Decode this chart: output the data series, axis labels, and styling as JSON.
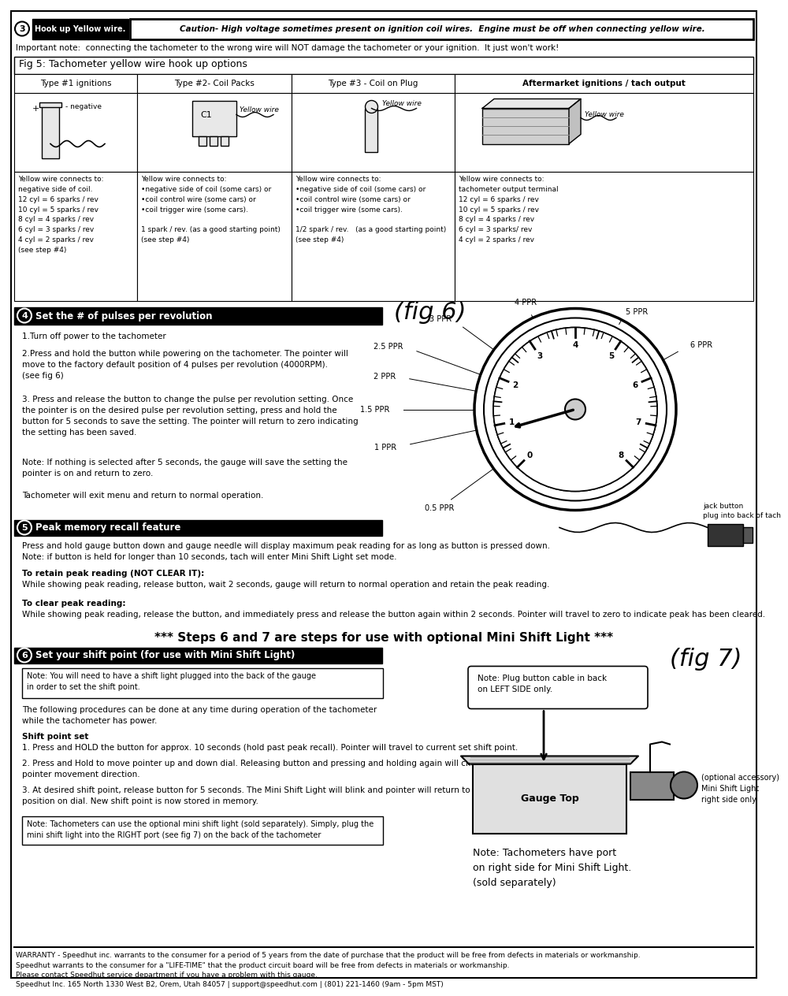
{
  "page_bg": "#ffffff",
  "fig_width": 9.54,
  "fig_height": 12.35,
  "step3_caution": "Caution- High voltage sometimes present on ignition coil wires.  Engine must be off when connecting yellow wire.",
  "important_note": "Important note:  connecting the tachometer to the wrong wire will NOT damage the tachometer or your ignition.  It just won't work!",
  "fig5_title": "Fig 5: Tachometer yellow wire hook up options",
  "col_headers": [
    "Type #1 ignitions",
    "Type #2- Coil Packs",
    "Type #3 - Coil on Plug",
    "Aftermarket ignitions / tach output"
  ],
  "col1_text": "Yellow wire connects to:\nnegative side of coil.\n12 cyl = 6 sparks / rev\n10 cyl = 5 sparks / rev\n8 cyl = 4 sparks / rev\n6 cyl = 3 sparks / rev\n4 cyl = 2 sparks / rev\n(see step #4)",
  "col2_text": "Yellow wire connects to:\n•negative side of coil (some cars) or\n•coil control wire (some cars) or\n•coil trigger wire (some cars).\n\n1 spark / rev. (as a good starting point)\n(see step #4)",
  "col3_text": "Yellow wire connects to:\n•negative side of coil (some cars) or\n•coil control wire (some cars) or\n•coil trigger wire (some cars).\n\n1/2 spark / rev.   (as a good starting point)\n(see step #4)",
  "col4_text": "Yellow wire connects to:\ntachometer output terminal\n12 cyl = 6 sparks / rev\n10 cyl = 5 sparks / rev\n8 cyl = 4 sparks / rev\n6 cyl = 3 sparks/ rev\n4 cyl = 2 sparks / rev",
  "step4_text1": "1.Turn off power to the tachometer",
  "step4_text2": "2.Press and hold the button while powering on the tachometer. The pointer will\nmove to the factory default position of 4 pulses per revolution (4000RPM).\n(see fig 6)",
  "step4_text3": "3. Press and release the button to change the pulse per revolution setting. Once\nthe pointer is on the desired pulse per revolution setting, press and hold the\nbutton for 5 seconds to save the setting. The pointer will return to zero indicating\nthe setting has been saved.",
  "step4_text4": "Note: If nothing is selected after 5 seconds, the gauge will save the setting the\npointer is on and return to zero.",
  "step4_text5": "Tachometer will exit menu and return to normal operation.",
  "jack_button_text": "jack button\nplug into back of tach",
  "step5_text1": "Press and hold gauge button down and gauge needle will display maximum peak reading for as long as button is pressed down.\nNote: if button is held for longer than 10 seconds, tach will enter Mini Shift Light set mode.",
  "step5_text2a": "To retain peak reading (NOT CLEAR IT):",
  "step5_text2b": "While showing peak reading, release button, wait 2 seconds, gauge will return to normal operation and retain the peak reading.",
  "step5_text3a": "To clear peak reading:",
  "step5_text3b": "While showing peak reading, release the button, and immediately press and release the button again within 2 seconds. Pointer will travel to zero to indicate peak has been cleared.",
  "big_text": "*** Steps 6 and 7 are steps for use with optional Mini Shift Light ***",
  "step6_note": "Note: You will need to have a shift light plugged into the back of the gauge\nin order to set the shift point.",
  "step6_text1": "The following procedures can be done at any time during operation of the tachometer\nwhile the tachometer has power.",
  "step6_text2a": "Shift point set",
  "step6_text2b": "1. Press and HOLD the button for approx. 10 seconds (hold past peak recall). Pointer will travel to current set shift point.",
  "step6_text3": "2. Press and Hold to move pointer up and down dial. Releasing button and pressing and holding again will change\npointer movement direction.",
  "step6_text4": "3. At desired shift point, release button for 5 seconds. The Mini Shift Light will blink and pointer will return to zero\nposition on dial. New shift point is now stored in memory.",
  "step6_note2": "Note: Tachometers can use the optional mini shift light (sold separately). Simply, plug the\nmini shift light into the RIGHT port (see fig 7) on the back of the tachometer",
  "fig7_note": "Note: Plug button cable in back\non LEFT SIDE only.",
  "gauge_top_label": "Gauge Top",
  "optional_accessory": "(optional accessory)\nMini Shift Light\nright side only",
  "tach_note": "Note: Tachometers have port\non right side for Mini Shift Light.\n(sold separately)",
  "warranty_text": "WARRANTY - Speedhut inc. warrants to the consumer for a period of 5 years from the date of purchase that the product will be free from defects in materials or workmanship.\nSpeedhut warrants to the consumer for a \"LIFE-TIME\" that the product circuit board will be free from defects in materials or workmanship.\nPlease contact Speedhut service department if you have a problem with this gauge.\nSpeedhut Inc. 165 North 1330 West B2, Orem, Utah 84057 | support@speedhut.com | (801) 221-1460 (9am - 5pm MST)"
}
